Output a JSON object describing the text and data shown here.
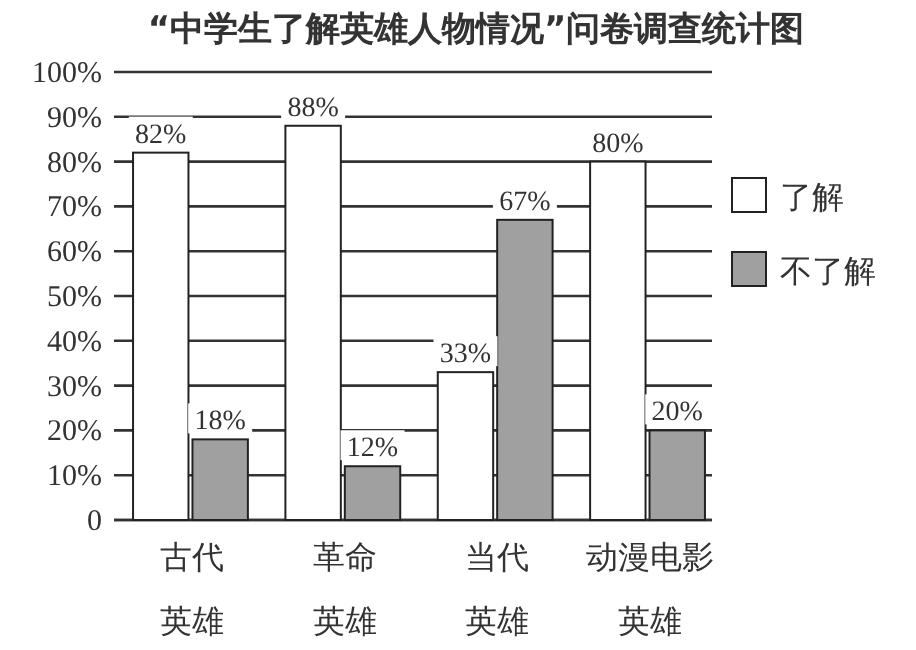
{
  "chart_data": {
    "type": "bar",
    "title": "“中学生了解英雄人物情况”问卷调查统计图",
    "categories": [
      "古代英雄",
      "革命英雄",
      "当代英雄",
      "动漫电影英雄"
    ],
    "series": [
      {
        "name": "了解",
        "color": "#ffffff",
        "values": [
          82,
          88,
          33,
          80
        ],
        "value_labels": [
          "82%",
          "88%",
          "33%",
          "80%"
        ]
      },
      {
        "name": "不了解",
        "color": "#a0a0a0",
        "values": [
          18,
          12,
          67,
          20
        ],
        "value_labels": [
          "18%",
          "12%",
          "67%",
          "20%"
        ]
      }
    ],
    "ylim": [
      0,
      100
    ],
    "yticks": [
      {
        "value": 0,
        "label": "0"
      },
      {
        "value": 10,
        "label": "10%"
      },
      {
        "value": 20,
        "label": "20%"
      },
      {
        "value": 30,
        "label": "30%"
      },
      {
        "value": 40,
        "label": "40%"
      },
      {
        "value": 50,
        "label": "50%"
      },
      {
        "value": 60,
        "label": "60%"
      },
      {
        "value": 70,
        "label": "70%"
      },
      {
        "value": 80,
        "label": "80%"
      },
      {
        "value": 90,
        "label": "90%"
      },
      {
        "value": 100,
        "label": "100%"
      }
    ],
    "grid": "y",
    "legend": "right"
  }
}
